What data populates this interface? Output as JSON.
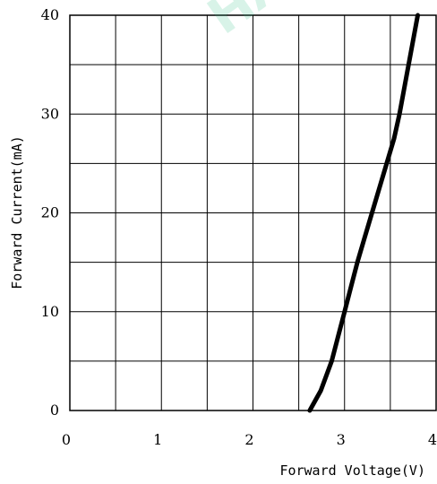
{
  "chart_data": {
    "type": "line",
    "title": "",
    "xlabel": "Forward Voltage(V)",
    "ylabel": "Forward Current(mA)",
    "xlim": [
      0,
      4
    ],
    "ylim": [
      0,
      40
    ],
    "x_ticks": [
      "0",
      "1",
      "2",
      "3",
      "4"
    ],
    "y_ticks": [
      "0",
      "10",
      "20",
      "30",
      "40"
    ],
    "grid": true,
    "grid_divisions": {
      "x": 8,
      "y": 8
    },
    "line_color": "#000000",
    "watermark": "HA",
    "series": [
      {
        "x": [
          2.62,
          2.68,
          2.74,
          2.8,
          2.86,
          2.93,
          3.0,
          3.07,
          3.14,
          3.22,
          3.3,
          3.38,
          3.46,
          3.54,
          3.6,
          3.65,
          3.7,
          3.75,
          3.8
        ],
        "y": [
          0,
          1,
          2,
          3.5,
          5,
          7.5,
          10,
          12.5,
          15,
          17.5,
          20,
          22.5,
          25,
          27.5,
          30,
          32.5,
          35,
          37.5,
          40
        ]
      }
    ]
  }
}
